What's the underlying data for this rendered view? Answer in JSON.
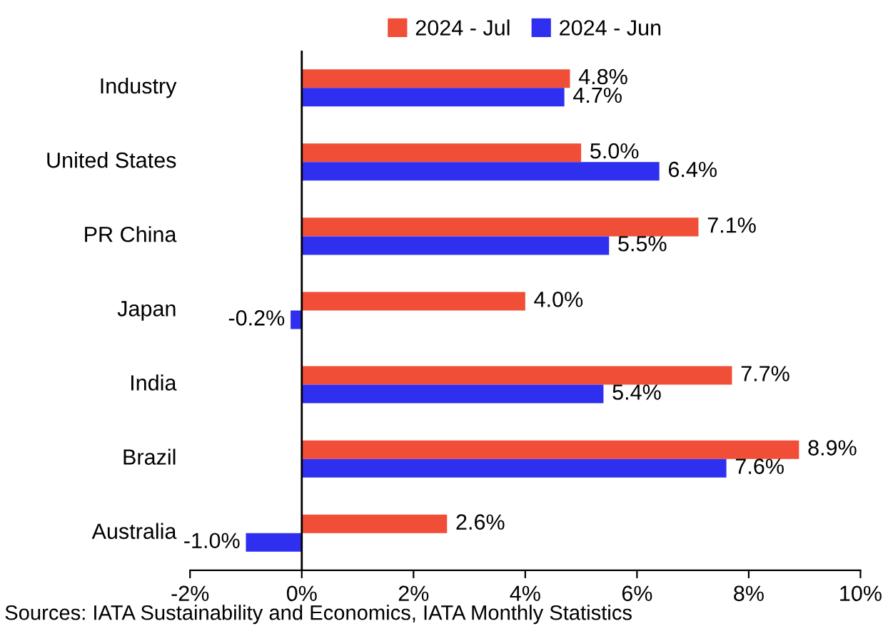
{
  "chart_data": {
    "type": "bar",
    "orientation": "horizontal",
    "categories": [
      "Industry",
      "United States",
      "PR China",
      "Japan",
      "India",
      "Brazil",
      "Australia"
    ],
    "series": [
      {
        "name": "2024 - Jul",
        "color": "#f04e37",
        "values": [
          4.8,
          5.0,
          7.1,
          4.0,
          7.7,
          8.9,
          2.6
        ],
        "value_labels": [
          "4.8%",
          "5.0%",
          "7.1%",
          "4.0%",
          "7.7%",
          "8.9%",
          "2.6%"
        ]
      },
      {
        "name": "2024 - Jun",
        "color": "#2f2ff0",
        "values": [
          4.7,
          6.4,
          5.5,
          -0.2,
          5.4,
          7.6,
          -1.0
        ],
        "value_labels": [
          "4.7%",
          "6.4%",
          "5.5%",
          "-0.2%",
          "5.4%",
          "7.6%",
          "-1.0%"
        ]
      }
    ],
    "xlim": [
      -2,
      10
    ],
    "xticks": [
      {
        "value": -2,
        "label": "-2%"
      },
      {
        "value": 0,
        "label": "0%"
      },
      {
        "value": 2,
        "label": "2%"
      },
      {
        "value": 4,
        "label": "4%"
      },
      {
        "value": 6,
        "label": "6%"
      },
      {
        "value": 8,
        "label": "8%"
      },
      {
        "value": 10,
        "label": "10%"
      }
    ],
    "grid": false,
    "legend": "top",
    "ref_lines": [
      {
        "axis": "x",
        "value": 0,
        "color": "#000000"
      }
    ],
    "annotations": [
      "Sources: IATA Sustainability and Economics, IATA Monthly Statistics"
    ]
  }
}
